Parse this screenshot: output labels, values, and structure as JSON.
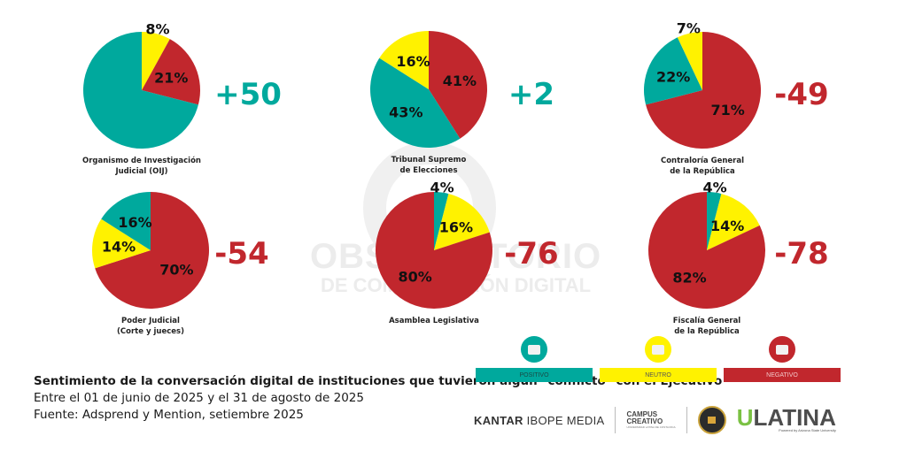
{
  "colors": {
    "positivo": "#00a99d",
    "neutro": "#fff200",
    "negativo": "#c1272d"
  },
  "chart_data": {
    "type": "pie",
    "title": "Sentimiento de la conversación digital de instituciones que tuvieron algún \"conflicto\" con el Ejecutivo",
    "legend": [
      "POSITIVO",
      "NEUTRO",
      "NEGATIVO"
    ],
    "legend_placement": "bottom-right",
    "charts": [
      {
        "name": "Organismo de Investigación Judicial (OIJ)",
        "label_lines": [
          "Organismo de Investigación",
          "Judicial (OIJ)"
        ],
        "net": "+50",
        "net_color": "positivo",
        "slices": [
          {
            "sentiment": "neutro",
            "value": 8
          },
          {
            "sentiment": "negativo",
            "value": 21
          },
          {
            "sentiment": "positivo",
            "value": 71
          }
        ],
        "shown_labels": [
          "8%",
          "21%",
          ""
        ]
      },
      {
        "name": "Tribunal Supremo de Elecciones",
        "label_lines": [
          "Tribunal Supremo",
          "de Elecciones"
        ],
        "net": "+2",
        "net_color": "positivo",
        "slices": [
          {
            "sentiment": "negativo",
            "value": 41
          },
          {
            "sentiment": "positivo",
            "value": 43
          },
          {
            "sentiment": "neutro",
            "value": 16
          }
        ],
        "shown_labels": [
          "41%",
          "43%",
          "16%"
        ]
      },
      {
        "name": "Contraloría General de la República",
        "label_lines": [
          "Contraloría General",
          "de la República"
        ],
        "net": "-49",
        "net_color": "negativo",
        "slices": [
          {
            "sentiment": "negativo",
            "value": 71
          },
          {
            "sentiment": "positivo",
            "value": 22
          },
          {
            "sentiment": "neutro",
            "value": 7
          }
        ],
        "shown_labels": [
          "71%",
          "22%",
          "7%"
        ]
      },
      {
        "name": "Poder Judicial (Corte y jueces)",
        "label_lines": [
          "Poder Judicial",
          "(Corte y jueces)"
        ],
        "net": "-54",
        "net_color": "negativo",
        "slices": [
          {
            "sentiment": "negativo",
            "value": 70
          },
          {
            "sentiment": "neutro",
            "value": 14
          },
          {
            "sentiment": "positivo",
            "value": 16
          }
        ],
        "shown_labels": [
          "70%",
          "14%",
          "16%"
        ]
      },
      {
        "name": "Asamblea Legislativa",
        "label_lines": [
          "Asamblea Legislativa"
        ],
        "net": "-76",
        "net_color": "negativo",
        "slices": [
          {
            "sentiment": "positivo",
            "value": 4
          },
          {
            "sentiment": "neutro",
            "value": 16
          },
          {
            "sentiment": "negativo",
            "value": 80
          }
        ],
        "shown_labels": [
          "4%",
          "16%",
          "80%"
        ]
      },
      {
        "name": "Fiscalía General de la República",
        "label_lines": [
          "Fiscalía General",
          "de la República"
        ],
        "net": "-78",
        "net_color": "negativo",
        "slices": [
          {
            "sentiment": "positivo",
            "value": 4
          },
          {
            "sentiment": "neutro",
            "value": 14
          },
          {
            "sentiment": "negativo",
            "value": 82
          }
        ],
        "shown_labels": [
          "4%",
          "14%",
          "82%"
        ]
      }
    ]
  },
  "watermark": {
    "line1": "OBSERVATORIO",
    "line2": "DE COMUNICACIÓN DIGITAL"
  },
  "caption": {
    "title": "Sentimiento de la conversación digital de instituciones que tuvieron algún \"conflicto\" con el Ejecutivo",
    "period": "Entre el 01 de junio de 2025 y el 31 de agosto de 2025",
    "source": "Fuente: Adsprend y Mention, setiembre 2025"
  },
  "legend": {
    "positivo": "POSITIVO",
    "neutro": "NEUTRO",
    "negativo": "NEGATIVO"
  },
  "logos": {
    "kantar_bold": "KANTAR",
    "kantar_rest": " IBOPE MEDIA",
    "campus_line1": "CAMPUS",
    "campus_line2": "CREATIVO",
    "campus_sub": "UNIVERSIDAD LATINA DE COSTA RICA",
    "ulatina_u": "U",
    "ulatina_rest": "LATINA",
    "ulatina_sub": "Powered by Arizona State University"
  }
}
